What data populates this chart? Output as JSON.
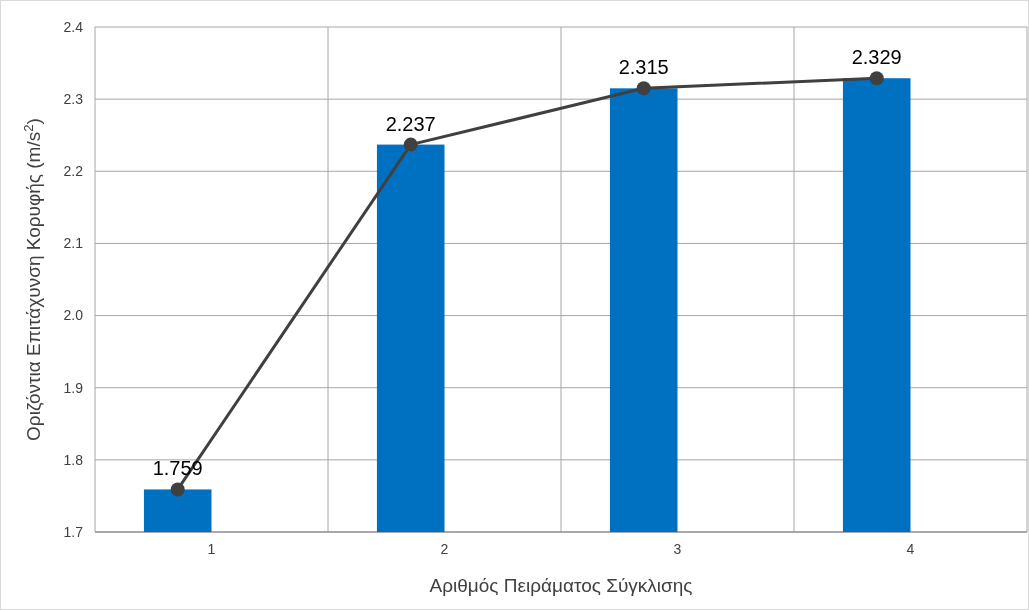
{
  "chart_data": {
    "type": "bar",
    "xlabel": "Αριθμός Πειράματος Σύγκλισης",
    "ylabel": "Οριζόντια Επιτάχυνση Κορυφής (m/s$^{2}$)",
    "categories": [
      "1",
      "2",
      "3",
      "4"
    ],
    "series": [
      {
        "color": "#0070c0",
        "values": [
          1.759,
          2.237,
          2.315,
          2.329
        ]
      },
      {
        "type": "line",
        "color": "#404040",
        "values": [
          1.759,
          2.237,
          2.315,
          2.329
        ],
        "value_labels": [
          "1.759",
          "2.237",
          "2.315",
          "2.329"
        ],
        "marker": "circle",
        "line_style": "solid"
      }
    ],
    "ylim": [
      1.7,
      2.4
    ],
    "yticks": [
      {
        "value": 1.7,
        "label": "1.7"
      },
      {
        "value": 1.8,
        "label": "1.8"
      },
      {
        "value": 1.9,
        "label": "1.9"
      },
      {
        "value": 2.0,
        "label": "2.0"
      },
      {
        "value": 2.1,
        "label": "2.1"
      },
      {
        "value": 2.2,
        "label": "2.2"
      },
      {
        "value": 2.3,
        "label": "2.3"
      },
      {
        "value": 2.4,
        "label": "2.4"
      }
    ],
    "grid": true
  }
}
